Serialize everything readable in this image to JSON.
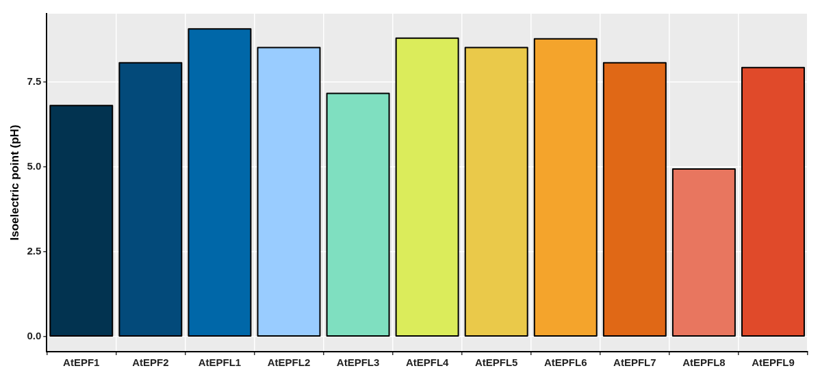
{
  "chart_data": {
    "type": "bar",
    "ylabel": "Isoelectric point (pH)",
    "categories": [
      "AtEPF1",
      "AtEPF2",
      "AtEPFL1",
      "AtEPFL2",
      "AtEPFL3",
      "AtEPFL4",
      "AtEPFL5",
      "AtEPFL6",
      "AtEPFL7",
      "AtEPFL8",
      "AtEPFL9"
    ],
    "values": [
      6.81,
      8.07,
      9.07,
      8.52,
      7.17,
      8.8,
      8.52,
      8.78,
      8.07,
      4.94,
      7.93
    ],
    "colors": [
      "#023350",
      "#034a7a",
      "#0067a8",
      "#99ccff",
      "#7fdfc0",
      "#dbec5b",
      "#eac94a",
      "#f4a42c",
      "#e06816",
      "#e8765f",
      "#e04a2a"
    ],
    "ylim": [
      -0.45,
      9.52
    ],
    "yticks": [
      {
        "value": 0,
        "label": "0.0"
      },
      {
        "value": 2.5,
        "label": "2.5"
      },
      {
        "value": 5,
        "label": "5.0"
      },
      {
        "value": 7.5,
        "label": "7.5"
      }
    ],
    "grid": true,
    "legend": false
  }
}
